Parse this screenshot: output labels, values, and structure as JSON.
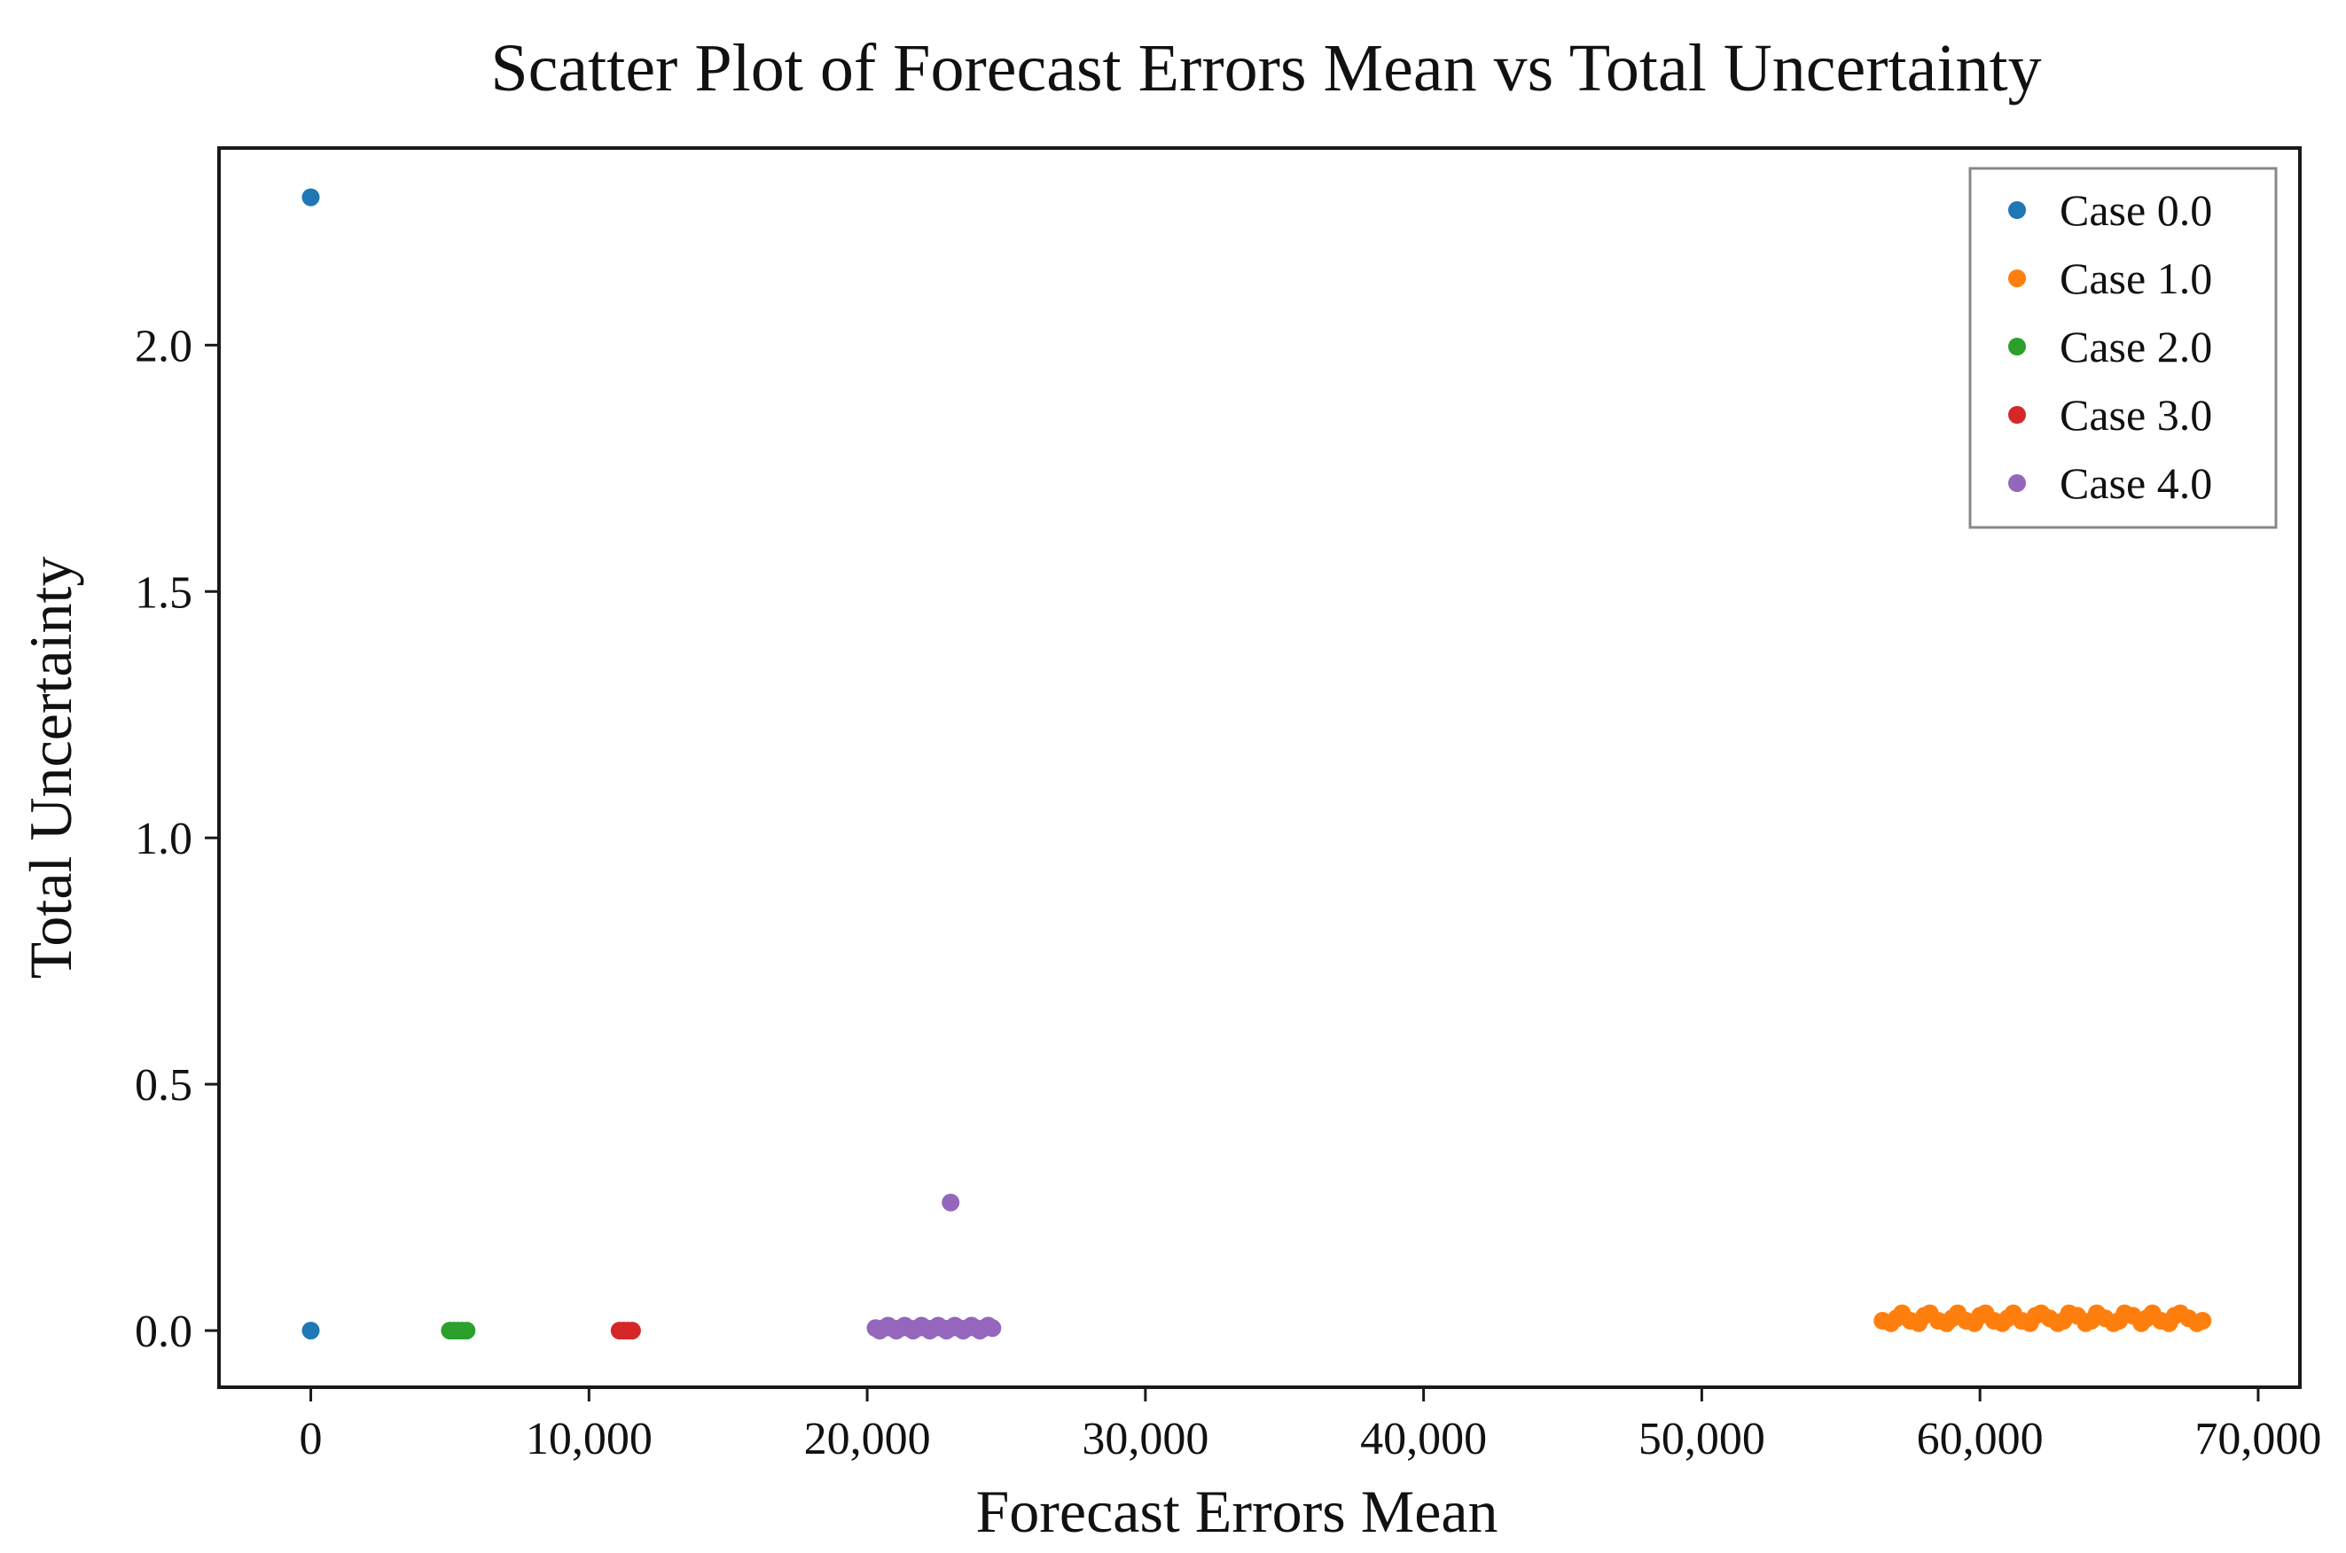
{
  "chart_data": {
    "type": "scatter",
    "title": "Scatter Plot of Forecast Errors Mean vs Total Uncertainty",
    "xlabel": "Forecast Errors Mean",
    "ylabel": "Total Uncertainty",
    "xlim": [
      -3300,
      71500
    ],
    "ylim": [
      -0.115,
      2.4
    ],
    "xticks": [
      0,
      10000,
      20000,
      30000,
      40000,
      50000,
      60000,
      70000
    ],
    "xtick_labels": [
      "0",
      "10,000",
      "20,000",
      "30,000",
      "40,000",
      "50,000",
      "60,000",
      "70,000"
    ],
    "yticks": [
      0.0,
      0.5,
      1.0,
      1.5,
      2.0
    ],
    "ytick_labels": [
      "0.0",
      "0.5",
      "1.0",
      "1.5",
      "2.0"
    ],
    "grid": false,
    "legend_position": "top-right",
    "series": [
      {
        "name": "Case 0.0",
        "color": "#1f77b4",
        "points": [
          [
            0,
            2.3
          ],
          [
            0,
            0.0
          ]
        ]
      },
      {
        "name": "Case 1.0",
        "color": "#ff7f0e",
        "points": [
          [
            56500,
            0.02
          ],
          [
            57000,
            0.025
          ],
          [
            57500,
            0.02
          ],
          [
            58000,
            0.03
          ],
          [
            58500,
            0.02
          ],
          [
            59000,
            0.025
          ],
          [
            59500,
            0.02
          ],
          [
            60000,
            0.03
          ],
          [
            60500,
            0.02
          ],
          [
            61000,
            0.025
          ],
          [
            61500,
            0.02
          ],
          [
            62000,
            0.03
          ],
          [
            62500,
            0.025
          ],
          [
            63000,
            0.02
          ],
          [
            63500,
            0.03
          ],
          [
            64000,
            0.02
          ],
          [
            64500,
            0.025
          ],
          [
            65000,
            0.02
          ],
          [
            65500,
            0.03
          ],
          [
            66000,
            0.025
          ],
          [
            66500,
            0.02
          ],
          [
            67000,
            0.03
          ],
          [
            67500,
            0.025
          ],
          [
            68000,
            0.02
          ],
          [
            56800,
            0.015
          ],
          [
            57800,
            0.015
          ],
          [
            58800,
            0.015
          ],
          [
            59800,
            0.015
          ],
          [
            60800,
            0.015
          ],
          [
            61800,
            0.015
          ],
          [
            62800,
            0.015
          ],
          [
            63800,
            0.015
          ],
          [
            64800,
            0.015
          ],
          [
            65800,
            0.015
          ],
          [
            66800,
            0.015
          ],
          [
            67800,
            0.015
          ],
          [
            57200,
            0.035
          ],
          [
            58200,
            0.035
          ],
          [
            59200,
            0.035
          ],
          [
            60200,
            0.035
          ],
          [
            61200,
            0.035
          ],
          [
            62200,
            0.035
          ],
          [
            63200,
            0.035
          ],
          [
            64200,
            0.035
          ],
          [
            65200,
            0.035
          ],
          [
            66200,
            0.035
          ],
          [
            67200,
            0.035
          ]
        ]
      },
      {
        "name": "Case 2.0",
        "color": "#2ca02c",
        "points": [
          [
            5000,
            0.0
          ],
          [
            5150,
            0.0
          ],
          [
            5300,
            0.0
          ],
          [
            5450,
            0.0
          ],
          [
            5600,
            0.0
          ]
        ]
      },
      {
        "name": "Case 3.0",
        "color": "#d62728",
        "points": [
          [
            11100,
            0.0
          ],
          [
            11250,
            0.0
          ],
          [
            11400,
            0.0
          ],
          [
            11550,
            0.0
          ]
        ]
      },
      {
        "name": "Case 4.0",
        "color": "#9467bd",
        "points": [
          [
            20300,
            0.005
          ],
          [
            20600,
            0.005
          ],
          [
            20900,
            0.005
          ],
          [
            21200,
            0.005
          ],
          [
            21500,
            0.005
          ],
          [
            21800,
            0.005
          ],
          [
            22100,
            0.005
          ],
          [
            22400,
            0.005
          ],
          [
            22700,
            0.005
          ],
          [
            23000,
            0.005
          ],
          [
            23300,
            0.005
          ],
          [
            23600,
            0.005
          ],
          [
            23900,
            0.005
          ],
          [
            24200,
            0.005
          ],
          [
            24500,
            0.005
          ],
          [
            20450,
            0.0
          ],
          [
            21050,
            0.0
          ],
          [
            21650,
            0.0
          ],
          [
            22250,
            0.0
          ],
          [
            22850,
            0.0
          ],
          [
            23450,
            0.0
          ],
          [
            24050,
            0.0
          ],
          [
            20750,
            0.01
          ],
          [
            21350,
            0.01
          ],
          [
            21950,
            0.01
          ],
          [
            22550,
            0.01
          ],
          [
            23150,
            0.01
          ],
          [
            23750,
            0.01
          ],
          [
            24350,
            0.01
          ],
          [
            23000,
            0.26
          ]
        ]
      }
    ]
  }
}
